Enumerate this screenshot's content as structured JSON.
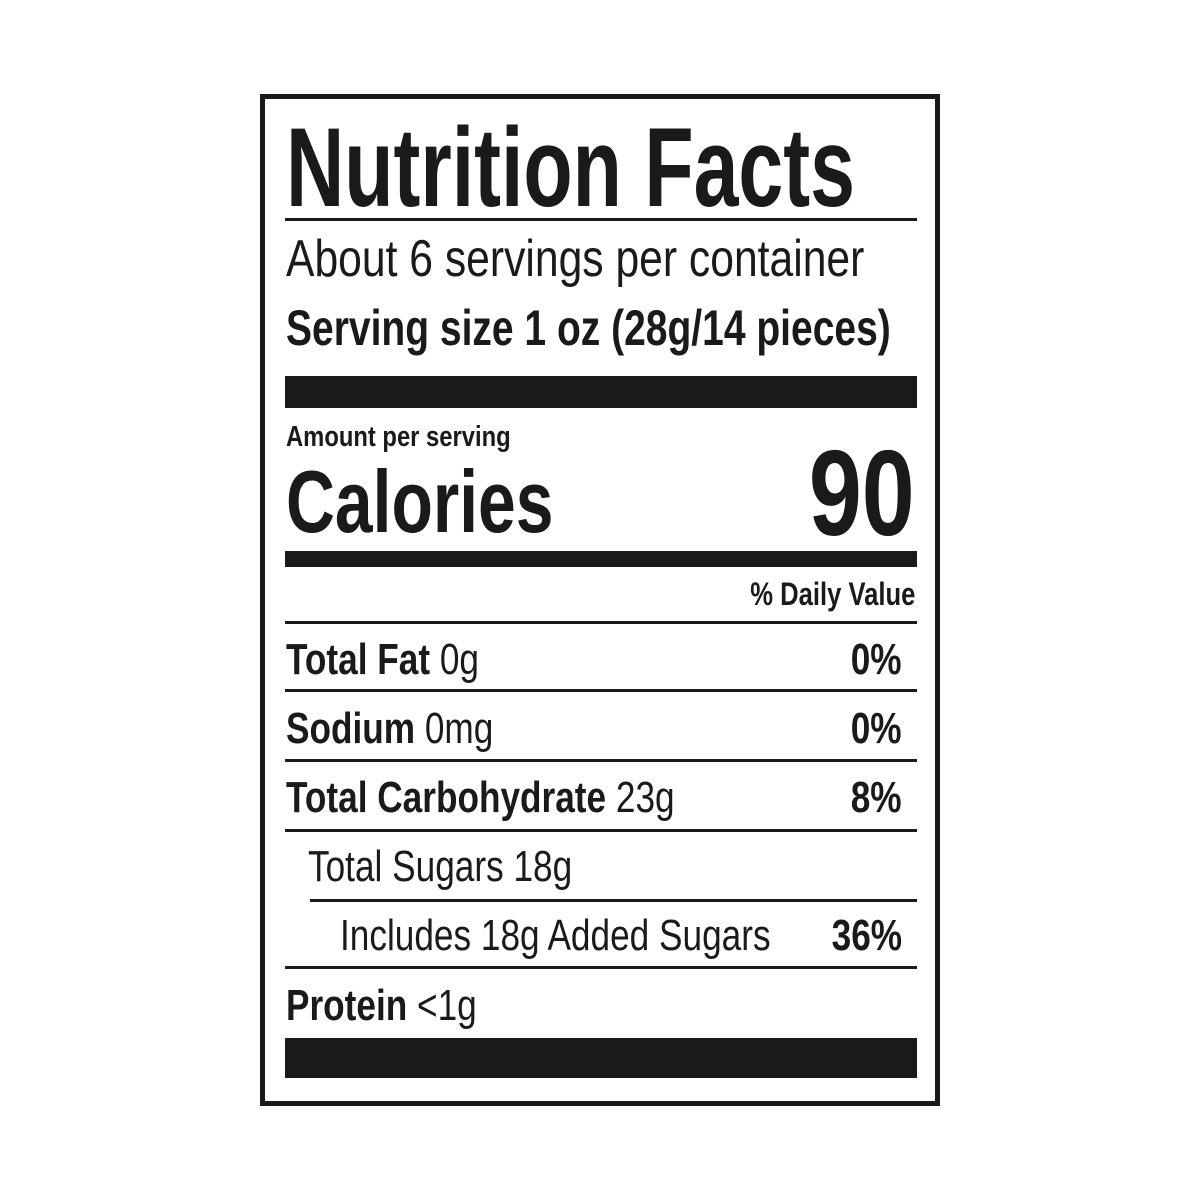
{
  "title": "Nutrition Facts",
  "servings_per_container": "About 6 servings per container",
  "serving_size": "Serving size 1 oz (28g/14 pieces)",
  "amount_per_serving": "Amount per serving",
  "calories_label": "Calories",
  "calories_value": "90",
  "daily_value_header": "% Daily Value",
  "nutrients": [
    {
      "name": "Total Fat",
      "amount": "0g",
      "dv": "0%"
    },
    {
      "name": "Sodium",
      "amount": "0mg",
      "dv": "0%"
    },
    {
      "name": "Total Carbohydrate",
      "amount": "23g",
      "dv": "8%"
    },
    {
      "name": "",
      "amount": "Total Sugars 18g",
      "dv": ""
    },
    {
      "name": "",
      "amount": "Includes 18g Added Sugars",
      "dv": "36%"
    },
    {
      "name": "Protein",
      "amount": "<1g",
      "dv": ""
    }
  ]
}
